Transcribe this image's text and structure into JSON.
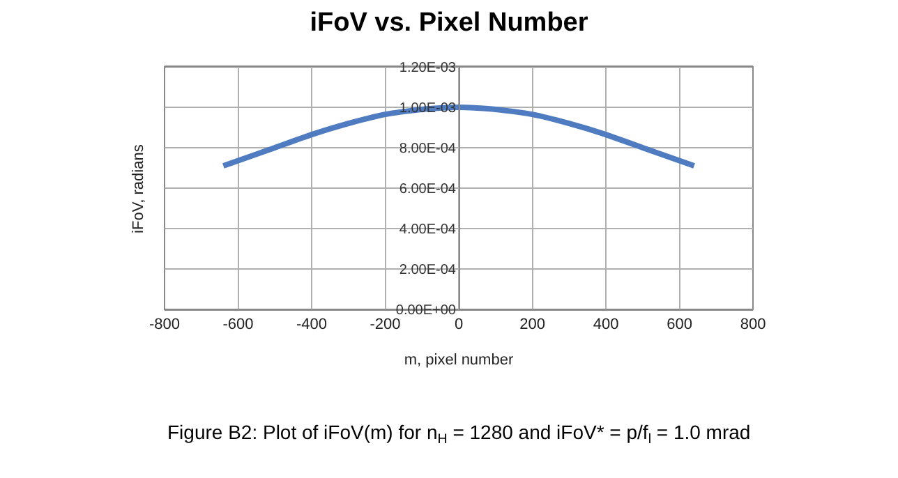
{
  "chart_data": {
    "type": "line",
    "title": "iFoV vs. Pixel Number",
    "xlabel": "m, pixel number",
    "ylabel": "iFoV, radians",
    "x": [
      -640,
      -500,
      -400,
      -300,
      -200,
      -100,
      0,
      100,
      200,
      300,
      400,
      500,
      640
    ],
    "series": [
      {
        "color": "#4f7cc0",
        "values": [
          0.00071,
          0.0008,
          0.000865,
          0.00092,
          0.000965,
          0.00099,
          0.001,
          0.00099,
          0.000965,
          0.00092,
          0.000865,
          0.0008,
          0.00071
        ]
      }
    ],
    "xlim": [
      -800,
      800
    ],
    "xticks": [
      -800,
      -600,
      -400,
      -200,
      0,
      200,
      400,
      600,
      800
    ],
    "ylim": [
      0,
      0.0012
    ],
    "yticks": [
      {
        "value": 0,
        "label": "0.00E+00"
      },
      {
        "value": 0.0002,
        "label": "2.00E-04"
      },
      {
        "value": 0.0004,
        "label": "4.00E-04"
      },
      {
        "value": 0.0006,
        "label": "6.00E-04"
      },
      {
        "value": 0.0008,
        "label": "8.00E-04"
      },
      {
        "value": 0.001,
        "label": "1.00E-03"
      },
      {
        "value": 0.0012,
        "label": "1.20E-03"
      }
    ],
    "grid": true,
    "marker": "none",
    "line_style": "solid",
    "annotations": [
      "Figure B2: Plot of iFoV(m) for n$_{H}$ = 1280 and iFoV* = p/f$_{l}$ = 1.0 mrad"
    ]
  }
}
